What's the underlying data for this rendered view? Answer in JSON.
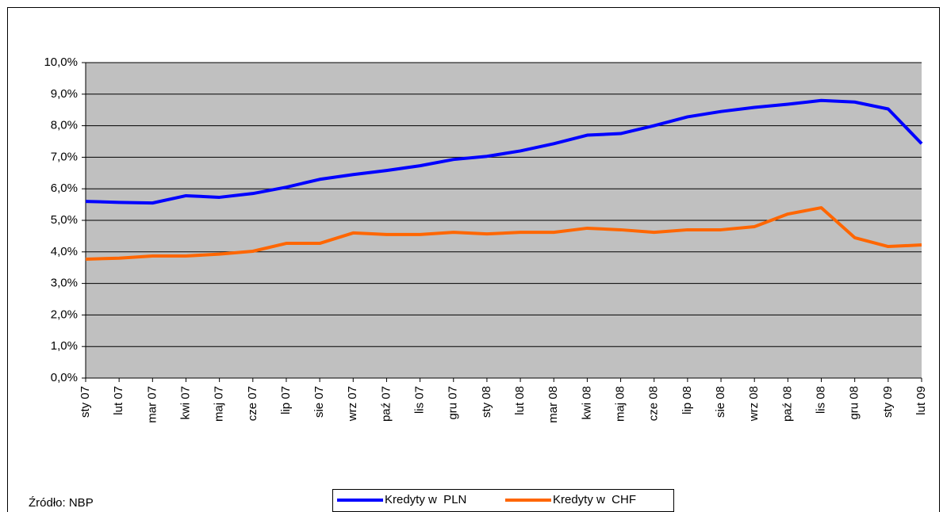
{
  "chart_data": {
    "type": "line",
    "categories": [
      "sty 07",
      "lut 07",
      "mar 07",
      "kwi 07",
      "maj 07",
      "cze 07",
      "lip 07",
      "sie 07",
      "wrz 07",
      "paź 07",
      "lis 07",
      "gru 07",
      "sty 08",
      "lut 08",
      "mar 08",
      "kwi 08",
      "maj 08",
      "cze 08",
      "lip 08",
      "sie 08",
      "wrz 08",
      "paź 08",
      "lis 08",
      "gru 08",
      "sty 09",
      "lut 09"
    ],
    "series": [
      {
        "name": "Kredyty w  PLN",
        "color": "#0000ff",
        "values": [
          5.6,
          5.57,
          5.55,
          5.78,
          5.73,
          5.85,
          6.05,
          6.3,
          6.45,
          6.58,
          6.73,
          6.93,
          7.03,
          7.2,
          7.43,
          7.7,
          7.75,
          8.0,
          8.28,
          8.45,
          8.58,
          8.68,
          8.8,
          8.75,
          8.53,
          7.43
        ]
      },
      {
        "name": "Kredyty w  CHF",
        "color": "#ff6600",
        "values": [
          3.77,
          3.8,
          3.87,
          3.87,
          3.93,
          4.02,
          4.27,
          4.27,
          4.6,
          4.55,
          4.55,
          4.62,
          4.57,
          4.62,
          4.62,
          4.75,
          4.7,
          4.62,
          4.7,
          4.7,
          4.8,
          5.2,
          5.4,
          4.45,
          4.17,
          4.22
        ]
      }
    ],
    "ylim": [
      0,
      10
    ],
    "yticks": [
      {
        "value": 0,
        "label": "0,0%"
      },
      {
        "value": 1,
        "label": "1,0%"
      },
      {
        "value": 2,
        "label": "2,0%"
      },
      {
        "value": 3,
        "label": "3,0%"
      },
      {
        "value": 4,
        "label": "4,0%"
      },
      {
        "value": 5,
        "label": "5,0%"
      },
      {
        "value": 6,
        "label": "6,0%"
      },
      {
        "value": 7,
        "label": "7,0%"
      },
      {
        "value": 8,
        "label": "8,0%"
      },
      {
        "value": 9,
        "label": "9,0%"
      },
      {
        "value": 10,
        "label": "10,0%"
      }
    ],
    "grid": true,
    "legend": "bottom",
    "plot_background": "#c0c0c0",
    "source": "Źródło: NBP"
  }
}
